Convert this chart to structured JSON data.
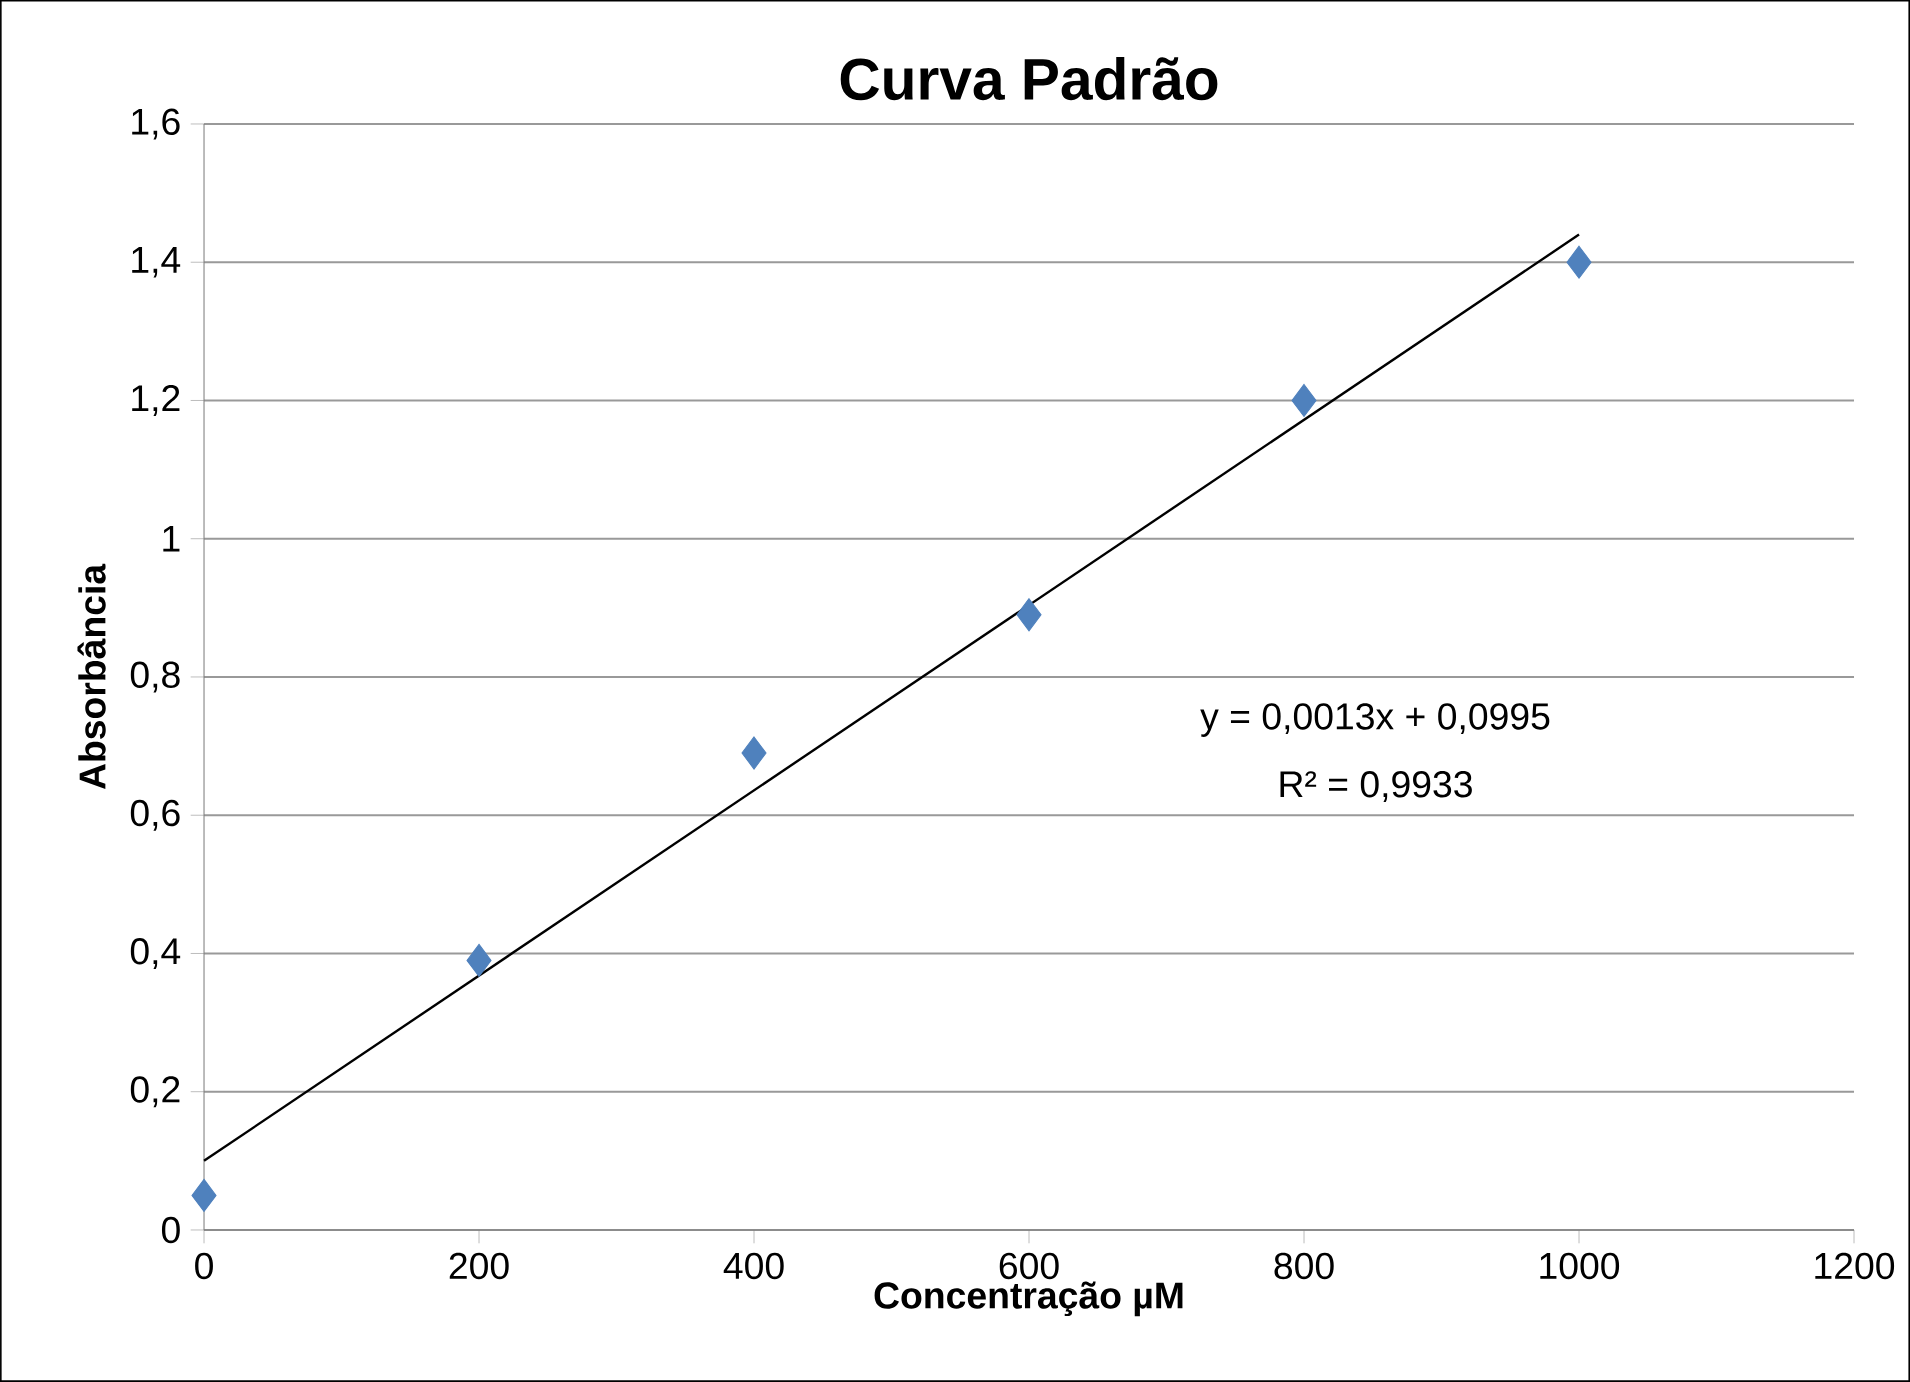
{
  "chart_data": {
    "type": "scatter",
    "title": "Curva Padrão",
    "xlabel": "Concentração µM",
    "ylabel": "Absorbância",
    "annotations": [
      "y = 0,0013x + 0,0995",
      "R² = 0,9933"
    ],
    "series": [
      {
        "color": "#4f81bd",
        "marker": "diamond",
        "x": [
          0,
          200,
          400,
          600,
          800,
          1000
        ],
        "values": [
          0.05,
          0.39,
          0.69,
          0.89,
          1.2,
          1.4
        ]
      },
      {
        "type": "line",
        "color": "#000000",
        "x": [
          0,
          1000
        ],
        "values": [
          0.1,
          1.44
        ]
      }
    ],
    "xlim": [
      0,
      1200
    ],
    "ylim": [
      0,
      1.6
    ],
    "xticks": [
      0,
      200,
      400,
      600,
      800,
      1000,
      1200
    ],
    "yticks": [
      0,
      {
        "value": 0.2,
        "label": "0,2"
      },
      {
        "value": 0.4,
        "label": "0,4"
      },
      {
        "value": 0.6,
        "label": "0,6"
      },
      {
        "value": 0.8,
        "label": "0,8"
      },
      1,
      {
        "value": 1.2,
        "label": "1,2"
      },
      {
        "value": 1.4,
        "label": "1,4"
      },
      {
        "value": 1.6,
        "label": "1,6"
      }
    ],
    "grid": "y"
  }
}
